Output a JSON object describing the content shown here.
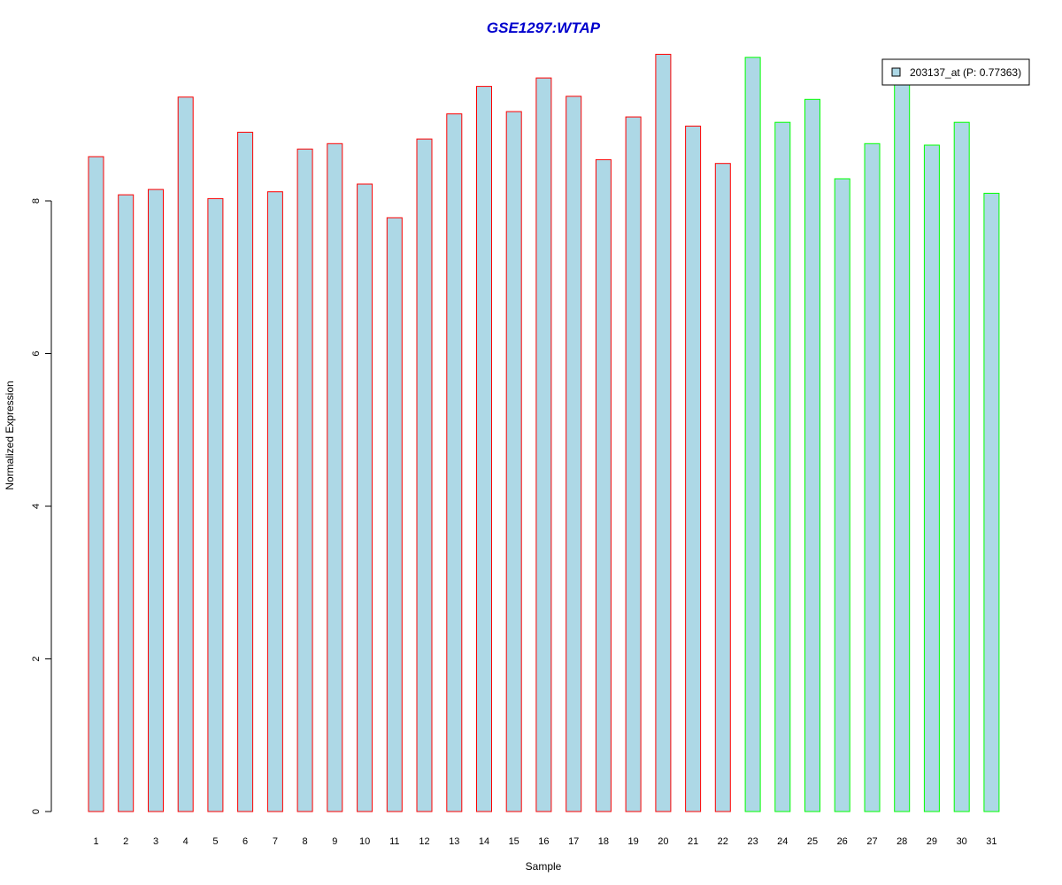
{
  "chart_data": {
    "type": "bar",
    "title": "GSE1297:WTAP",
    "xlabel": "Sample",
    "ylabel": "Normalized Expression",
    "categories": [
      "1",
      "2",
      "3",
      "4",
      "5",
      "6",
      "7",
      "8",
      "9",
      "10",
      "11",
      "12",
      "13",
      "14",
      "15",
      "16",
      "17",
      "18",
      "19",
      "20",
      "21",
      "22",
      "23",
      "24",
      "25",
      "26",
      "27",
      "28",
      "29",
      "30",
      "31"
    ],
    "values": [
      8.58,
      8.08,
      8.15,
      9.36,
      8.03,
      8.9,
      8.12,
      8.68,
      8.75,
      8.22,
      7.78,
      8.81,
      9.14,
      9.5,
      9.17,
      9.61,
      9.37,
      8.54,
      9.1,
      9.92,
      8.98,
      8.49,
      9.88,
      9.03,
      9.33,
      8.29,
      8.75,
      9.58,
      8.73,
      9.03,
      8.1
    ],
    "groups": [
      "red",
      "red",
      "red",
      "red",
      "red",
      "red",
      "red",
      "red",
      "red",
      "red",
      "red",
      "red",
      "red",
      "red",
      "red",
      "red",
      "red",
      "red",
      "red",
      "red",
      "red",
      "red",
      "green",
      "green",
      "green",
      "green",
      "green",
      "green",
      "green",
      "green",
      "green"
    ],
    "yticks": [
      0,
      2,
      4,
      6,
      8
    ],
    "ylim": [
      0,
      10
    ],
    "legend": {
      "label": "203137_at (P: 0.77363)",
      "placement": "top-right"
    },
    "colors": {
      "bar_fill": "#add8e6",
      "group_red": "#ff0000",
      "group_green": "#00ff00",
      "title": "#0000cd"
    }
  }
}
